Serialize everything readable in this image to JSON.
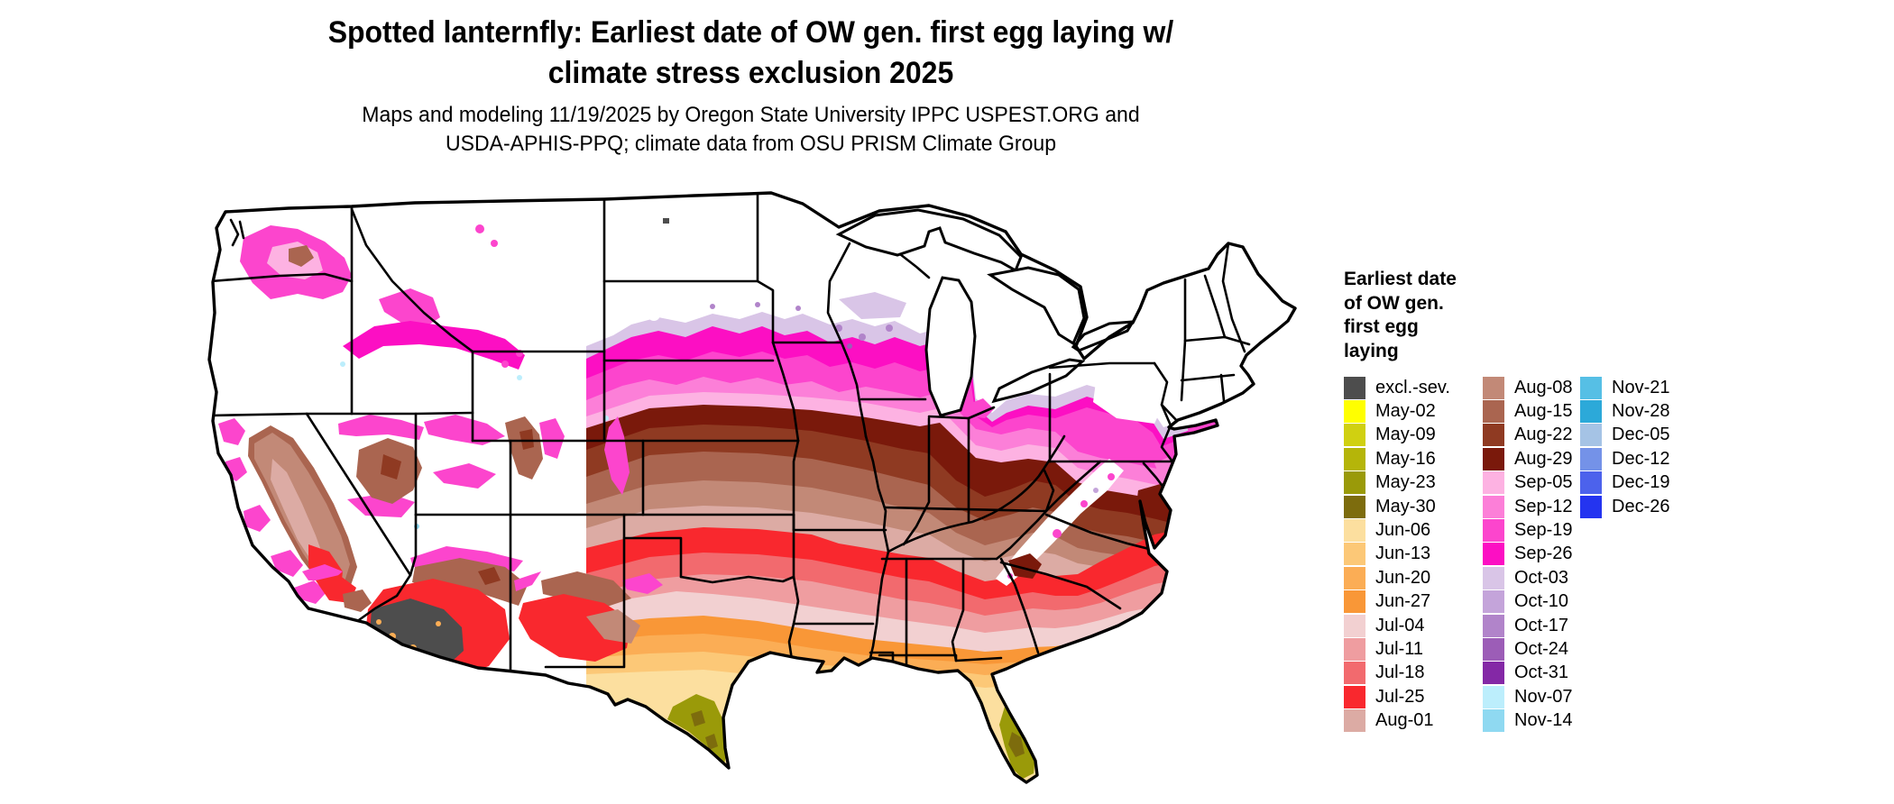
{
  "title": {
    "line1": "Spotted lanternfly: Earliest date of OW gen. first egg laying w/",
    "line2": "climate stress exclusion 2025"
  },
  "subtitle": {
    "line1": "Maps and modeling 11/19/2025 by Oregon State University IPPC USPEST.ORG and",
    "line2": "USDA-APHIS-PPQ; climate data from OSU PRISM Climate Group"
  },
  "legend": {
    "title_lines": [
      "Earliest date",
      "of OW gen.",
      "first egg",
      "laying"
    ],
    "columns": [
      {
        "entries": [
          {
            "label": "excl.-sev.",
            "color": "#4d4d4d"
          },
          {
            "label": "May-02",
            "color": "#ffff00"
          },
          {
            "label": "May-09",
            "color": "#d0d011"
          },
          {
            "label": "May-16",
            "color": "#b5b509"
          },
          {
            "label": "May-23",
            "color": "#9a9a09"
          },
          {
            "label": "May-30",
            "color": "#7d6c0d"
          },
          {
            "label": "Jun-06",
            "color": "#fcdf9f"
          },
          {
            "label": "Jun-13",
            "color": "#fcc877"
          },
          {
            "label": "Jun-20",
            "color": "#fbad55"
          },
          {
            "label": "Jun-27",
            "color": "#f99737"
          },
          {
            "label": "Jul-04",
            "color": "#f2d0d1"
          },
          {
            "label": "Jul-11",
            "color": "#ef9da0"
          },
          {
            "label": "Jul-18",
            "color": "#f26a6e"
          },
          {
            "label": "Jul-25",
            "color": "#f9282e"
          },
          {
            "label": "Aug-01",
            "color": "#dcaba4"
          }
        ]
      },
      {
        "entries": [
          {
            "label": "Aug-08",
            "color": "#c28977"
          },
          {
            "label": "Aug-15",
            "color": "#aa6550"
          },
          {
            "label": "Aug-22",
            "color": "#8f3a22"
          },
          {
            "label": "Aug-29",
            "color": "#7a190b"
          },
          {
            "label": "Sep-05",
            "color": "#fdb2e2"
          },
          {
            "label": "Sep-12",
            "color": "#fc7fd8"
          },
          {
            "label": "Sep-19",
            "color": "#fc45cd"
          },
          {
            "label": "Sep-26",
            "color": "#fc0fc3"
          },
          {
            "label": "Oct-03",
            "color": "#d9c5e7"
          },
          {
            "label": "Oct-10",
            "color": "#c4a4da"
          },
          {
            "label": "Oct-17",
            "color": "#b184ca"
          },
          {
            "label": "Oct-24",
            "color": "#9c5db7"
          },
          {
            "label": "Oct-31",
            "color": "#8428a6"
          },
          {
            "label": "Nov-07",
            "color": "#bceefc"
          },
          {
            "label": "Nov-14",
            "color": "#8fd9f1"
          }
        ]
      },
      {
        "entries": [
          {
            "label": "Nov-21",
            "color": "#56bfe5"
          },
          {
            "label": "Nov-28",
            "color": "#2ca9d9"
          },
          {
            "label": "Dec-05",
            "color": "#a5c3e5"
          },
          {
            "label": "Dec-12",
            "color": "#7492e8"
          },
          {
            "label": "Dec-19",
            "color": "#4c62ec"
          },
          {
            "label": "Dec-26",
            "color": "#2434f0"
          }
        ]
      }
    ]
  },
  "map": {
    "land_color": "#ffffff",
    "border_color": "#000000"
  }
}
